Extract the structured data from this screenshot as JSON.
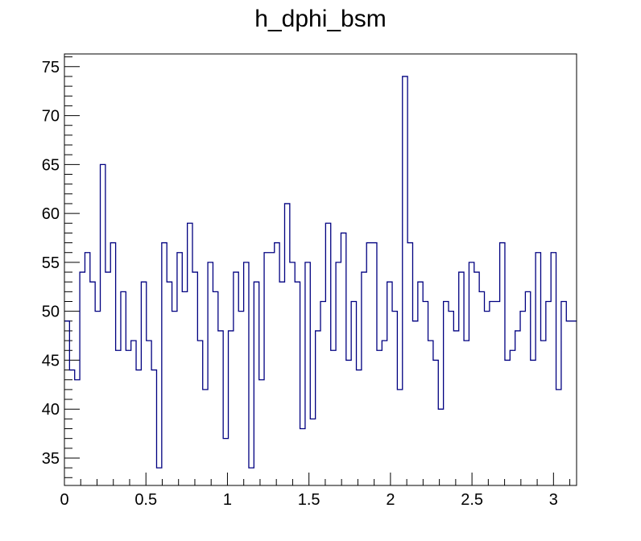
{
  "chart_data": {
    "type": "histogram",
    "title": "h_dphi_bsm",
    "xlabel": "",
    "ylabel": "",
    "xlim": [
      0,
      3.1416
    ],
    "ylim": [
      32.2,
      76.3
    ],
    "x_ticks": [
      0,
      0.5,
      1,
      1.5,
      2,
      2.5,
      3
    ],
    "x_tick_labels": [
      "0",
      "0.5",
      "1",
      "1.5",
      "2",
      "2.5",
      "3"
    ],
    "y_ticks": [
      35,
      40,
      45,
      50,
      55,
      60,
      65,
      70,
      75
    ],
    "y_tick_labels": [
      "35",
      "40",
      "45",
      "50",
      "55",
      "60",
      "65",
      "70",
      "75"
    ],
    "bin_count": 100,
    "bin_width": 0.031416,
    "values": [
      49,
      44,
      43,
      54,
      56,
      53,
      50,
      65,
      54,
      57,
      46,
      52,
      46,
      47,
      44,
      53,
      47,
      44,
      34,
      57,
      53,
      50,
      56,
      52,
      59,
      54,
      47,
      42,
      55,
      52,
      48,
      37,
      48,
      54,
      50,
      55,
      34,
      53,
      43,
      56,
      56,
      57,
      53,
      61,
      55,
      53,
      38,
      55,
      39,
      48,
      51,
      59,
      46,
      55,
      58,
      45,
      51,
      44,
      54,
      57,
      57,
      46,
      47,
      53,
      50,
      42,
      74,
      57,
      49,
      53,
      51,
      47,
      45,
      40,
      51,
      50,
      48,
      54,
      47,
      55,
      54,
      52,
      50,
      51,
      51,
      57,
      45,
      46,
      48,
      50,
      52,
      45,
      56,
      47,
      51,
      56,
      42,
      51,
      49,
      49
    ],
    "grid": false,
    "colors": {
      "line": "#000080",
      "frame": "#000000",
      "background": "#ffffff"
    }
  }
}
